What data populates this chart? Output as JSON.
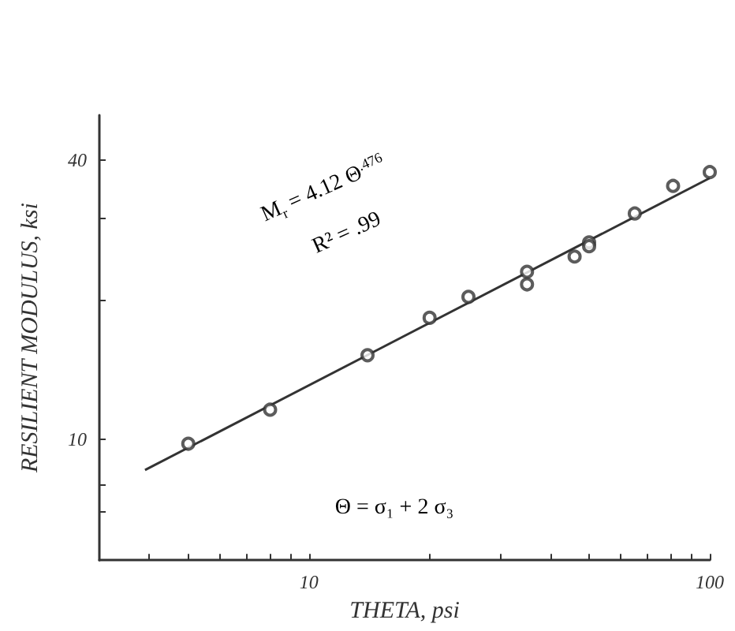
{
  "chart_data": {
    "type": "scatter",
    "xlabel": "THETA, psi",
    "ylabel": "RESILIENT MODULUS, ksi",
    "log": "xy",
    "marker": "circle",
    "grid": false,
    "xlim": [
      3,
      100
    ],
    "ylim": [
      5.5,
      50
    ],
    "xticks": [
      {
        "value": 4,
        "label": null
      },
      {
        "value": 5,
        "label": null
      },
      {
        "value": 6,
        "label": null
      },
      {
        "value": 7,
        "label": null
      },
      {
        "value": 8,
        "label": null
      },
      {
        "value": 9,
        "label": null
      },
      10,
      {
        "value": 20,
        "label": null
      },
      {
        "value": 30,
        "label": null
      },
      {
        "value": 40,
        "label": null
      },
      {
        "value": 50,
        "label": null
      },
      {
        "value": 60,
        "label": null
      },
      {
        "value": 70,
        "label": null
      },
      {
        "value": 80,
        "label": null
      },
      {
        "value": 90,
        "label": null
      },
      100
    ],
    "yticks": [
      {
        "value": 7,
        "label": null
      },
      {
        "value": 8,
        "label": null
      },
      10,
      {
        "value": 20,
        "label": null
      },
      {
        "value": 30,
        "label": null
      },
      40
    ],
    "series": [
      {
        "color": "#333333",
        "x": [
          5,
          8,
          14,
          20,
          25,
          35,
          35,
          46,
          50,
          50,
          65,
          81,
          100
        ],
        "values": [
          9.8,
          11.6,
          15.2,
          18.3,
          20.3,
          23,
          21.6,
          24.8,
          26.6,
          26.1,
          30.7,
          35.2,
          37.7
        ]
      },
      {
        "type": "line",
        "color": "#333333",
        "marker": "none",
        "x": [
          3.9,
          100
        ],
        "values": [
          8.6,
          36.6
        ]
      }
    ],
    "annotations": [
      "M$_{r}$ = 4.12 Θ$^{.476}$",
      "R² = .99",
      "Θ = σ₁ + 2 σ₃"
    ]
  }
}
